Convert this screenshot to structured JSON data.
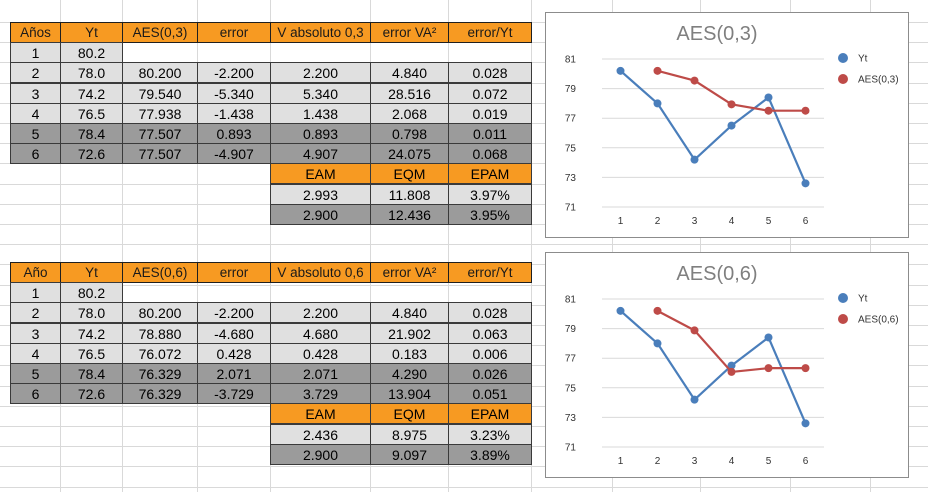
{
  "tables": [
    {
      "headers": [
        "Años",
        "Yt",
        "AES(0,3)",
        "error",
        "V absoluto 0,3",
        "error VA²",
        "error/Yt"
      ],
      "rows": [
        [
          "1",
          "80.2",
          "",
          "",
          "",
          "",
          ""
        ],
        [
          "2",
          "78.0",
          "80.200",
          "-2.200",
          "2.200",
          "4.840",
          "0.028"
        ],
        [
          "3",
          "74.2",
          "79.540",
          "-5.340",
          "5.340",
          "28.516",
          "0.072"
        ],
        [
          "4",
          "76.5",
          "77.938",
          "-1.438",
          "1.438",
          "2.068",
          "0.019"
        ],
        [
          "5",
          "78.4",
          "77.507",
          "0.893",
          "0.893",
          "0.798",
          "0.011"
        ],
        [
          "6",
          "72.6",
          "77.507",
          "-4.907",
          "4.907",
          "24.075",
          "0.068"
        ]
      ],
      "summary_headers": [
        "EAM",
        "EQM",
        "EPAM"
      ],
      "summary_rows": [
        [
          "2.993",
          "11.808",
          "3.97%"
        ],
        [
          "2.900",
          "12.436",
          "3.95%"
        ]
      ]
    },
    {
      "headers": [
        "Año",
        "Yt",
        "AES(0,6)",
        "error",
        "V absoluto 0,6",
        "error VA²",
        "error/Yt"
      ],
      "rows": [
        [
          "1",
          "80.2",
          "",
          "",
          "",
          "",
          ""
        ],
        [
          "2",
          "78.0",
          "80.200",
          "-2.200",
          "2.200",
          "4.840",
          "0.028"
        ],
        [
          "3",
          "74.2",
          "78.880",
          "-4.680",
          "4.680",
          "21.902",
          "0.063"
        ],
        [
          "4",
          "76.5",
          "76.072",
          "0.428",
          "0.428",
          "0.183",
          "0.006"
        ],
        [
          "5",
          "78.4",
          "76.329",
          "2.071",
          "2.071",
          "4.290",
          "0.026"
        ],
        [
          "6",
          "72.6",
          "76.329",
          "-3.729",
          "3.729",
          "13.904",
          "0.051"
        ]
      ],
      "summary_headers": [
        "EAM",
        "EQM",
        "EPAM"
      ],
      "summary_rows": [
        [
          "2.436",
          "8.975",
          "3.23%"
        ],
        [
          "2.900",
          "9.097",
          "3.89%"
        ]
      ]
    }
  ],
  "chart_data": [
    {
      "type": "line",
      "title": "AES(0,3)",
      "x": [
        1,
        2,
        3,
        4,
        5,
        6
      ],
      "series": [
        {
          "name": "Yt",
          "values": [
            80.2,
            78.0,
            74.2,
            76.5,
            78.4,
            72.6
          ],
          "color": "#4a7ebb"
        },
        {
          "name": "AES(0,3)",
          "values": [
            null,
            80.2,
            79.54,
            77.938,
            77.507,
            77.507
          ],
          "color": "#be4b48"
        }
      ],
      "yticks": [
        71,
        73,
        75,
        77,
        79,
        81
      ],
      "ylim": [
        71,
        81
      ],
      "legend": "right"
    },
    {
      "type": "line",
      "title": "AES(0,6)",
      "x": [
        1,
        2,
        3,
        4,
        5,
        6
      ],
      "series": [
        {
          "name": "Yt",
          "values": [
            80.2,
            78.0,
            74.2,
            76.5,
            78.4,
            72.6
          ],
          "color": "#4a7ebb"
        },
        {
          "name": "AES(0,6)",
          "values": [
            null,
            80.2,
            78.88,
            76.072,
            76.329,
            76.329
          ],
          "color": "#be4b48"
        }
      ],
      "yticks": [
        71,
        73,
        75,
        77,
        79,
        81
      ],
      "ylim": [
        71,
        81
      ],
      "legend": "right"
    }
  ]
}
